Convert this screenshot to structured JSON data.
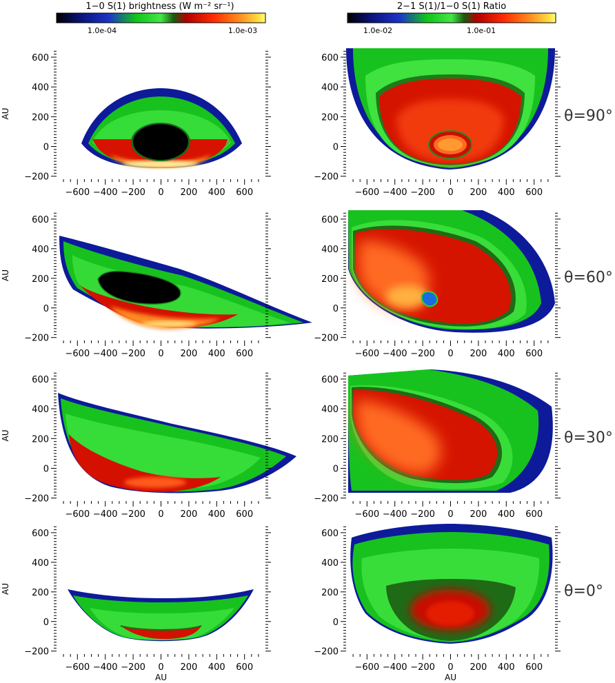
{
  "colorbars": [
    {
      "id": "brightness",
      "title": "1−0 S(1) brightness (W m⁻² sr⁻¹)",
      "ticks": [
        "1.0e-04",
        "1.0e-03"
      ]
    },
    {
      "id": "ratio",
      "title": "2−1 S(1)/1−0 S(1) Ratio",
      "ticks": [
        "1.0e-02",
        "1.0e-01"
      ]
    }
  ],
  "chart_data": {
    "type": "heatmap",
    "xlabel": "AU",
    "ylabel": "AU",
    "xlim": [
      -750,
      750
    ],
    "ylim": [
      -220,
      660
    ],
    "xticks": [
      -600,
      -400,
      -200,
      0,
      200,
      400,
      600
    ],
    "yticks": [
      -200,
      0,
      200,
      400,
      600
    ],
    "colormap": [
      "#000000",
      "#0a1480",
      "#1d33c8",
      "#12c81c",
      "#43ea43",
      "#1f8d1f",
      "#c80000",
      "#ff2200",
      "#ff7a1a",
      "#ffd030",
      "#ffff99"
    ],
    "rows": [
      {
        "theta_label": "θ=90°"
      },
      {
        "theta_label": "θ=60°"
      },
      {
        "theta_label": "θ=30°"
      },
      {
        "theta_label": "θ=0°"
      }
    ],
    "columns": [
      "brightness",
      "ratio"
    ]
  }
}
